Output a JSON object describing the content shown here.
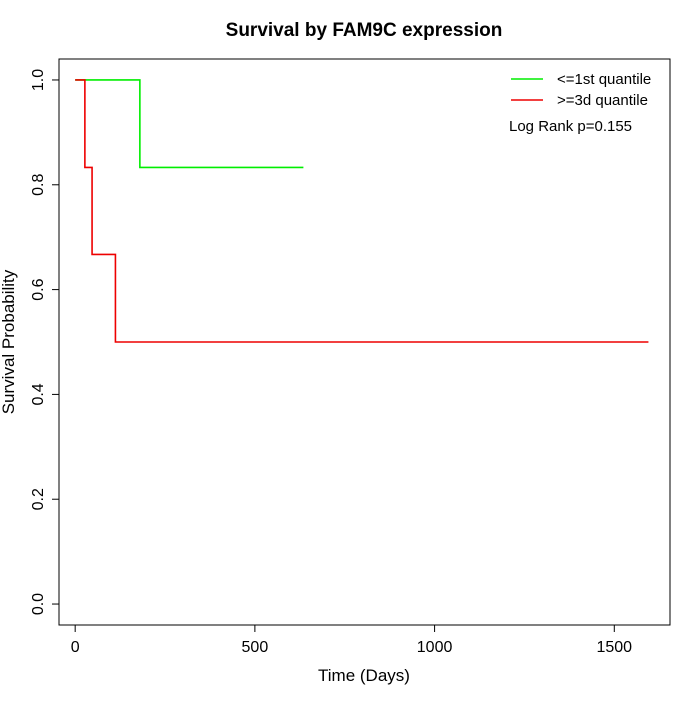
{
  "chart_data": {
    "type": "line",
    "title": "Survival by FAM9C expression",
    "xlabel": "Time (Days)",
    "ylabel": "Survival Probability",
    "xlim": [
      -45,
      1655
    ],
    "ylim": [
      -0.04,
      1.04
    ],
    "xticks": [
      0,
      500,
      1000,
      1500
    ],
    "xtick_labels": [
      "0",
      "500",
      "1000",
      "1500"
    ],
    "yticks": [
      0.0,
      0.2,
      0.4,
      0.6,
      0.8,
      1.0
    ],
    "ytick_labels": [
      "0.0",
      "0.2",
      "0.4",
      "0.6",
      "0.8",
      "1.0"
    ],
    "grid": false,
    "legend_position": "top-right",
    "annotation": "Log Rank p=0.155",
    "series": [
      {
        "name": "<=1st quantile",
        "color": "#00ee00",
        "step": "post",
        "x": [
          0,
          180,
          635
        ],
        "y": [
          1.0,
          0.833,
          0.833
        ]
      },
      {
        "name": ">=3d quantile",
        "color": "#ee0000",
        "step": "post",
        "x": [
          0,
          27,
          47,
          112,
          1595
        ],
        "y": [
          1.0,
          0.833,
          0.667,
          0.5,
          0.5
        ]
      }
    ]
  }
}
